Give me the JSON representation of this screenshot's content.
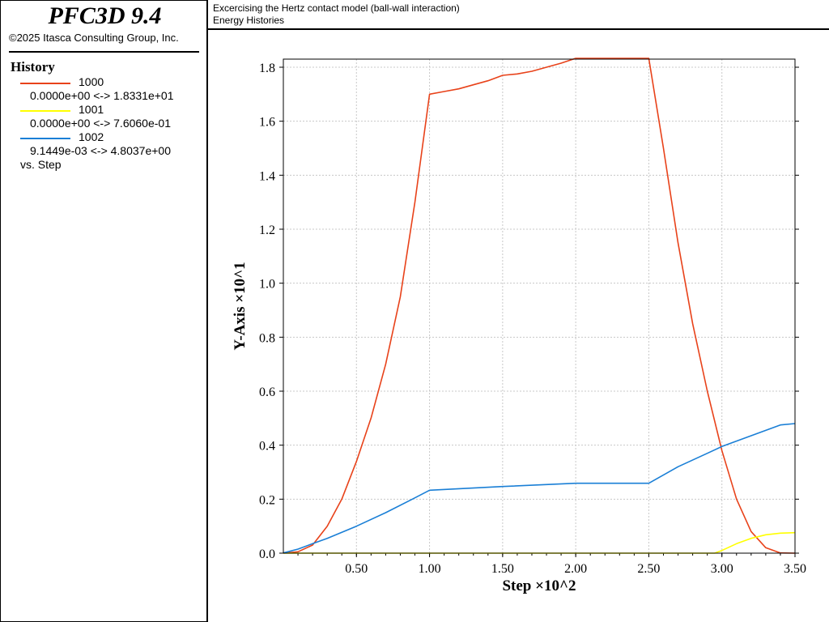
{
  "app": {
    "title": "PFC3D 9.4",
    "copyright": "©2025 Itasca Consulting Group, Inc."
  },
  "legend": {
    "heading": "History",
    "entries": [
      {
        "id": "1000",
        "range": "0.0000e+00 <->  1.8331e+01",
        "color": "#e8421a"
      },
      {
        "id": "1001",
        "range": "0.0000e+00 <->  7.6060e-01",
        "color": "#ffff00"
      },
      {
        "id": "1002",
        "range": "9.1449e-03 <->  4.8037e+00",
        "color": "#1a7fd6"
      }
    ],
    "vs_label": "vs. Step"
  },
  "plot": {
    "title": "Excercising the Hertz contact model (ball-wall interaction)",
    "subtitle": "Energy Histories"
  },
  "chart_data": {
    "type": "line",
    "xlabel": "Step ×10^2",
    "ylabel": "Y-Axis ×10^1",
    "xlim": [
      0,
      3.5
    ],
    "ylim": [
      0,
      1.83
    ],
    "x_ticks": [
      "0.50",
      "1.00",
      "1.50",
      "2.00",
      "2.50",
      "3.00",
      "3.50"
    ],
    "y_ticks": [
      "0.0",
      "0.2",
      "0.4",
      "0.6",
      "0.8",
      "1.0",
      "1.2",
      "1.4",
      "1.6",
      "1.8"
    ],
    "grid": true,
    "series": [
      {
        "name": "1000",
        "color": "#e8421a",
        "x": [
          0,
          0.1,
          0.2,
          0.3,
          0.4,
          0.5,
          0.6,
          0.7,
          0.8,
          0.9,
          1.0,
          1.1,
          1.2,
          1.3,
          1.4,
          1.5,
          1.6,
          1.7,
          1.8,
          1.9,
          2.0,
          2.25,
          2.5,
          2.6,
          2.7,
          2.8,
          2.9,
          3.0,
          3.1,
          3.2,
          3.3,
          3.4,
          3.5
        ],
        "y": [
          0,
          0.005,
          0.03,
          0.1,
          0.2,
          0.34,
          0.5,
          0.7,
          0.95,
          1.3,
          1.7,
          1.71,
          1.72,
          1.735,
          1.75,
          1.77,
          1.775,
          1.785,
          1.8,
          1.815,
          1.833,
          1.833,
          1.833,
          1.5,
          1.15,
          0.85,
          0.6,
          0.38,
          0.2,
          0.08,
          0.02,
          0.001,
          0
        ]
      },
      {
        "name": "1001",
        "color": "#ffff00",
        "x": [
          0,
          0.5,
          1.0,
          1.5,
          2.0,
          2.5,
          2.95,
          3.0,
          3.1,
          3.2,
          3.3,
          3.4,
          3.5
        ],
        "y": [
          0,
          0,
          0,
          0,
          0,
          0,
          0,
          0.01,
          0.035,
          0.055,
          0.068,
          0.074,
          0.076
        ]
      },
      {
        "name": "1002",
        "color": "#1a7fd6",
        "x": [
          0,
          0.1,
          0.2,
          0.3,
          0.5,
          0.7,
          0.9,
          1.0,
          1.5,
          2.0,
          2.5,
          2.7,
          2.9,
          3.0,
          3.2,
          3.4,
          3.5
        ],
        "y": [
          0.0009,
          0.015,
          0.035,
          0.055,
          0.1,
          0.15,
          0.205,
          0.233,
          0.247,
          0.259,
          0.259,
          0.32,
          0.37,
          0.395,
          0.435,
          0.475,
          0.48
        ]
      }
    ]
  }
}
